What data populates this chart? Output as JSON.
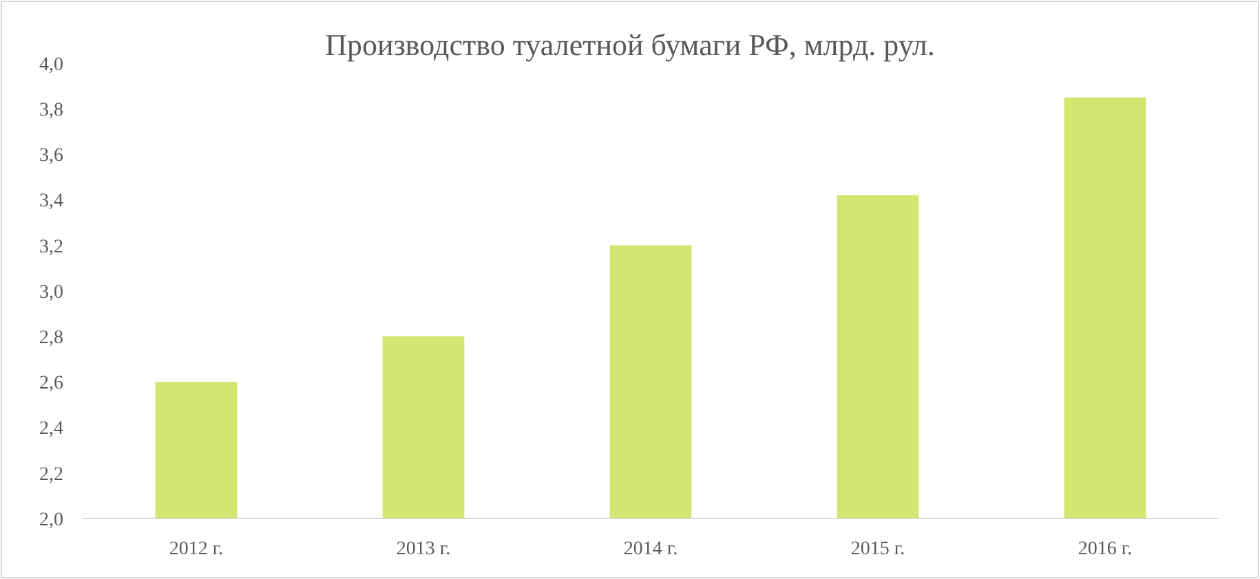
{
  "chart_data": {
    "type": "bar",
    "title": "Производство туалетной бумаги РФ, млрд. рул.",
    "categories": [
      "2012 г.",
      "2013 г.",
      "2014 г.",
      "2015 г.",
      "2016 г."
    ],
    "values": [
      2.6,
      2.8,
      3.2,
      3.42,
      3.85
    ],
    "color": "#d4e670",
    "ylim": [
      2.0,
      4.0
    ],
    "yticks": [
      {
        "value": 2.0,
        "label": "2,0"
      },
      {
        "value": 2.2,
        "label": "2,2"
      },
      {
        "value": 2.4,
        "label": "2,4"
      },
      {
        "value": 2.6,
        "label": "2,6"
      },
      {
        "value": 2.8,
        "label": "2,8"
      },
      {
        "value": 3.0,
        "label": "3,0"
      },
      {
        "value": 3.2,
        "label": "3,2"
      },
      {
        "value": 3.4,
        "label": "3,4"
      },
      {
        "value": 3.6,
        "label": "3,6"
      },
      {
        "value": 3.8,
        "label": "3,8"
      },
      {
        "value": 4.0,
        "label": "4,0"
      }
    ],
    "grid": false
  }
}
